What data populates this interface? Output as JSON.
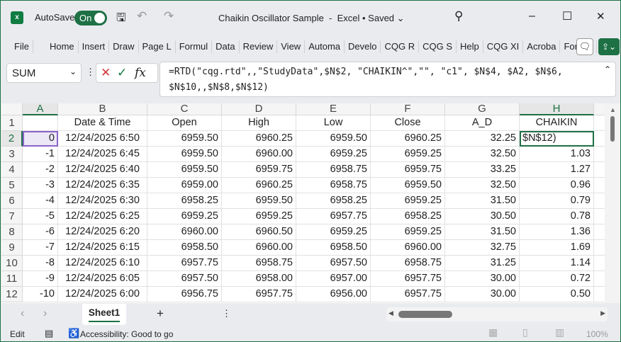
{
  "title": {
    "autosave": "AutoSave",
    "toggle": "On",
    "doc": "Chaikin Oscillator Sample  -  Excel • Saved ⌄",
    "minimize": "–",
    "maximize": "☐",
    "close": "✕"
  },
  "ribbon_tabs": [
    "File",
    "Home",
    "Insert",
    "Draw",
    "Page L",
    "Formul",
    "Data",
    "Review",
    "View",
    "Automa",
    "Develo",
    "CQG R",
    "CQG S",
    "Help",
    "CQG XI",
    "Acroba",
    "Formul"
  ],
  "formula_bar": {
    "name_box": "SUM",
    "fx": "fx",
    "formula": "=RTD(\"cqg.rtd\",,\"StudyData\",$N$2, \"CHAIKIN^\",\"\", \"c1\", $N$4, $A2, $N$6,\n$N$10,,$N$8,$N$12)"
  },
  "columns": [
    "A",
    "B",
    "C",
    "D",
    "E",
    "F",
    "G",
    "H"
  ],
  "header_row": [
    "",
    "Date & Time",
    "Open",
    "High",
    "Low",
    "Close",
    "A_D",
    "CHAIKIN"
  ],
  "rows": [
    [
      "0",
      "12/24/2025 6:50",
      "6959.50",
      "6960.25",
      "6959.50",
      "6960.25",
      "32.25",
      "$N$12)"
    ],
    [
      "-1",
      "12/24/2025 6:45",
      "6959.50",
      "6960.00",
      "6959.25",
      "6959.25",
      "32.50",
      "1.03"
    ],
    [
      "-2",
      "12/24/2025 6:40",
      "6959.50",
      "6959.75",
      "6958.75",
      "6959.75",
      "33.25",
      "1.27"
    ],
    [
      "-3",
      "12/24/2025 6:35",
      "6959.00",
      "6960.25",
      "6958.75",
      "6959.50",
      "32.50",
      "0.96"
    ],
    [
      "-4",
      "12/24/2025 6:30",
      "6958.25",
      "6959.50",
      "6958.25",
      "6959.25",
      "31.50",
      "0.79"
    ],
    [
      "-5",
      "12/24/2025 6:25",
      "6959.25",
      "6959.25",
      "6957.75",
      "6958.25",
      "30.50",
      "0.78"
    ],
    [
      "-6",
      "12/24/2025 6:20",
      "6960.00",
      "6960.50",
      "6959.25",
      "6959.25",
      "31.50",
      "1.36"
    ],
    [
      "-7",
      "12/24/2025 6:15",
      "6958.50",
      "6960.00",
      "6958.50",
      "6960.00",
      "32.75",
      "1.69"
    ],
    [
      "-8",
      "12/24/2025 6:10",
      "6957.75",
      "6958.75",
      "6957.50",
      "6958.75",
      "31.25",
      "1.14"
    ],
    [
      "-9",
      "12/24/2025 6:05",
      "6957.50",
      "6958.00",
      "6957.00",
      "6957.75",
      "30.00",
      "0.72"
    ],
    [
      "-10",
      "12/24/2025 6:00",
      "6956.75",
      "6957.75",
      "6956.00",
      "6957.75",
      "30.00",
      "0.50"
    ]
  ],
  "sheet_tab": "Sheet1",
  "add_sheet": "+",
  "status": {
    "mode": "Edit",
    "accessibility": "Accessibility: Good to go",
    "zoom": "100%"
  }
}
